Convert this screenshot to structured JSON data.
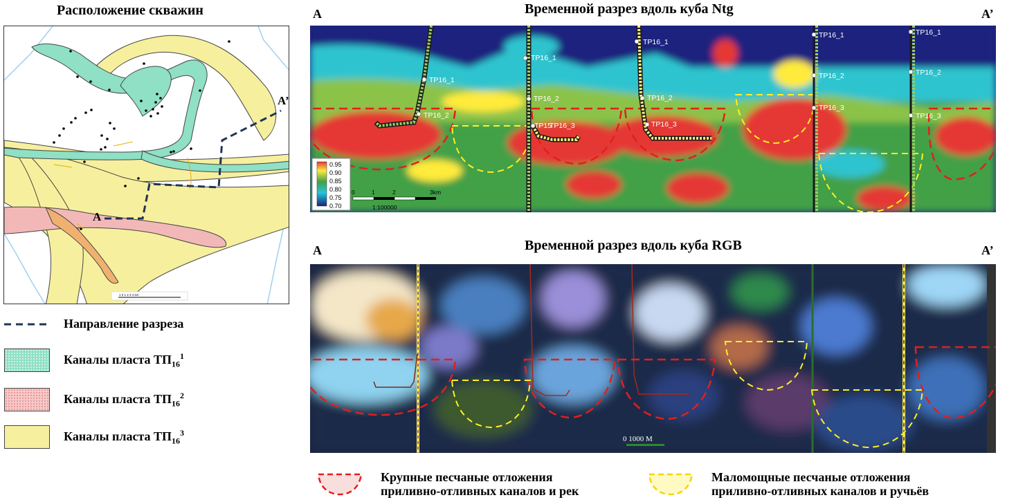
{
  "map": {
    "title": "Расположение скважин",
    "label_a": "A",
    "label_a2": "A’",
    "scale_text": "1 0 1 2 3 4 km"
  },
  "legend": {
    "dash_label": "Направление разреза",
    "green_label": "Каналы пласта ТП",
    "pink_label": "Каналы пласта ТП",
    "yellow_label": "Каналы пласта ТП",
    "sub": "16",
    "sup1": "1",
    "sup2": "2",
    "sup3": "3",
    "colors": {
      "green": "#8fe0c4",
      "pink": "#f2b8b8",
      "yellow": "#f6ef9e",
      "orange": "#f0b070"
    }
  },
  "ntg": {
    "title": "Временной разрез вдоль куба Ntg",
    "label_a": "A",
    "label_a2": "A’",
    "colorbar_ticks": [
      "0.95",
      "0.90",
      "0.85",
      "0.80",
      "0.75",
      "0.70"
    ],
    "scale_ticks": [
      "0",
      "1",
      "2",
      "3km"
    ],
    "scale_ratio": "1:100000",
    "wells": [
      {
        "labels": [
          "TP16_1",
          "TP16_2"
        ]
      },
      {
        "labels": [
          "TP16_1",
          "TP16_2",
          "TP16_3"
        ]
      },
      {
        "labels": [
          "TP16_1",
          "TP16_2",
          "TP16_3"
        ]
      },
      {
        "labels": [
          "TP16_1",
          "TP16_2",
          "TP16_3"
        ]
      },
      {
        "labels": [
          "TP16_1",
          "TP16_2",
          "TP16_3"
        ]
      }
    ],
    "extra_label": "TP15"
  },
  "rgb": {
    "title": "Временной разрез вдоль куба RGB",
    "label_a": "A",
    "label_a2": "A’",
    "scale_text": "0    1000 M"
  },
  "bottom_legend": {
    "red_line1": "Крупные песчаные отложения",
    "red_line2": "приливно-отливных каналов и рек",
    "yellow_line1": "Маломощные песчаные отложения",
    "yellow_line2": "приливно-отливных каналов и ручьёв"
  }
}
